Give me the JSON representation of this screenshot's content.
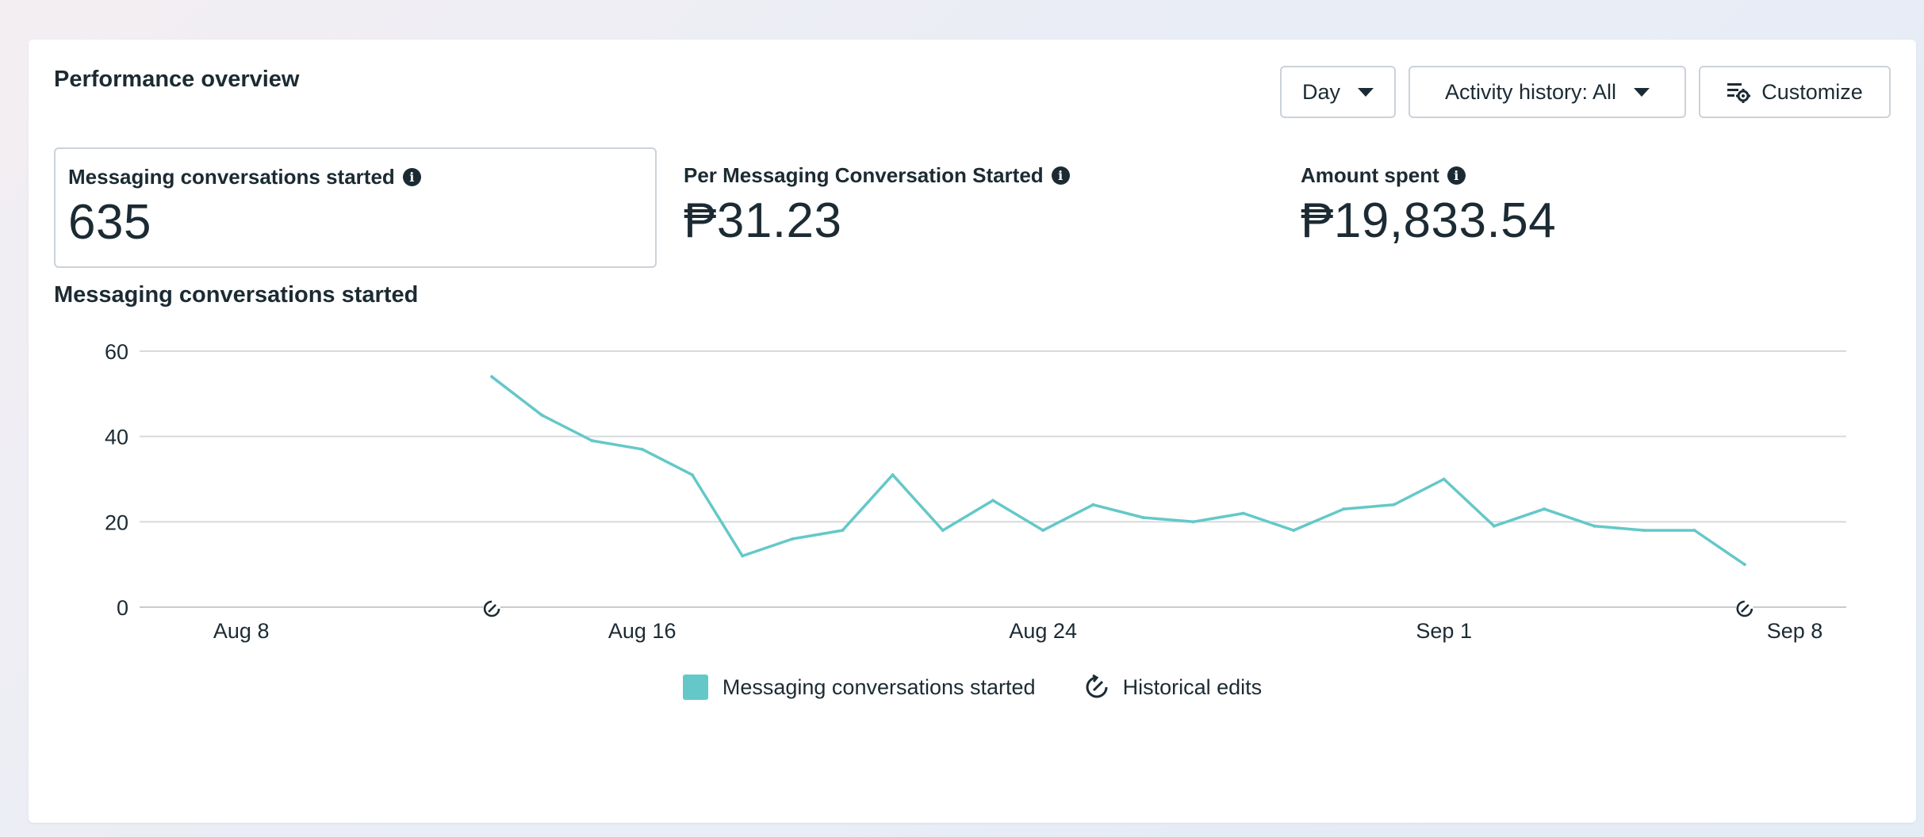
{
  "title": "Performance overview",
  "controls": {
    "day_label": "Day",
    "activity_label": "Activity history: All",
    "customize_label": "Customize"
  },
  "metrics": [
    {
      "label": "Messaging conversations started",
      "value": "635"
    },
    {
      "label": "Per Messaging Conversation Started",
      "value": "₱31.23"
    },
    {
      "label": "Amount spent",
      "value": "₱19,833.54"
    }
  ],
  "chart_section_title": "Messaging conversations started",
  "legend": {
    "series_label": "Messaging conversations started",
    "edits_label": "Historical edits"
  },
  "colors": {
    "series": "#64c8c8",
    "grid": "#d6dadd",
    "text": "#1c2b33"
  },
  "icons": [
    "info-icon",
    "caret-down-icon",
    "customize-settings-icon",
    "historical-edit-icon"
  ],
  "chart_data": {
    "type": "line",
    "x_ticks": [
      "Aug 8",
      "Aug 16",
      "Aug 24",
      "Sep 1",
      "Sep 8"
    ],
    "y_ticks": [
      "0",
      "20",
      "40",
      "60"
    ],
    "ylim": [
      0,
      60
    ],
    "x_domain": [
      "Aug 7",
      "Sep 8"
    ],
    "series": [
      {
        "name": "Messaging conversations started",
        "x": [
          "Aug 13",
          "Aug 14",
          "Aug 15",
          "Aug 16",
          "Aug 17",
          "Aug 18",
          "Aug 19",
          "Aug 20",
          "Aug 21",
          "Aug 22",
          "Aug 23",
          "Aug 24",
          "Aug 25",
          "Aug 26",
          "Aug 27",
          "Aug 28",
          "Aug 29",
          "Aug 30",
          "Aug 31",
          "Sep 1",
          "Sep 2",
          "Sep 3",
          "Sep 4",
          "Sep 5",
          "Sep 6",
          "Sep 7"
        ],
        "values": [
          54,
          45,
          39,
          37,
          31,
          12,
          16,
          18,
          31,
          18,
          25,
          18,
          24,
          21,
          20,
          22,
          18,
          23,
          24,
          30,
          19,
          23,
          19,
          18,
          18,
          10
        ]
      }
    ],
    "historical_edits": [
      "Aug 13",
      "Sep 7"
    ]
  }
}
